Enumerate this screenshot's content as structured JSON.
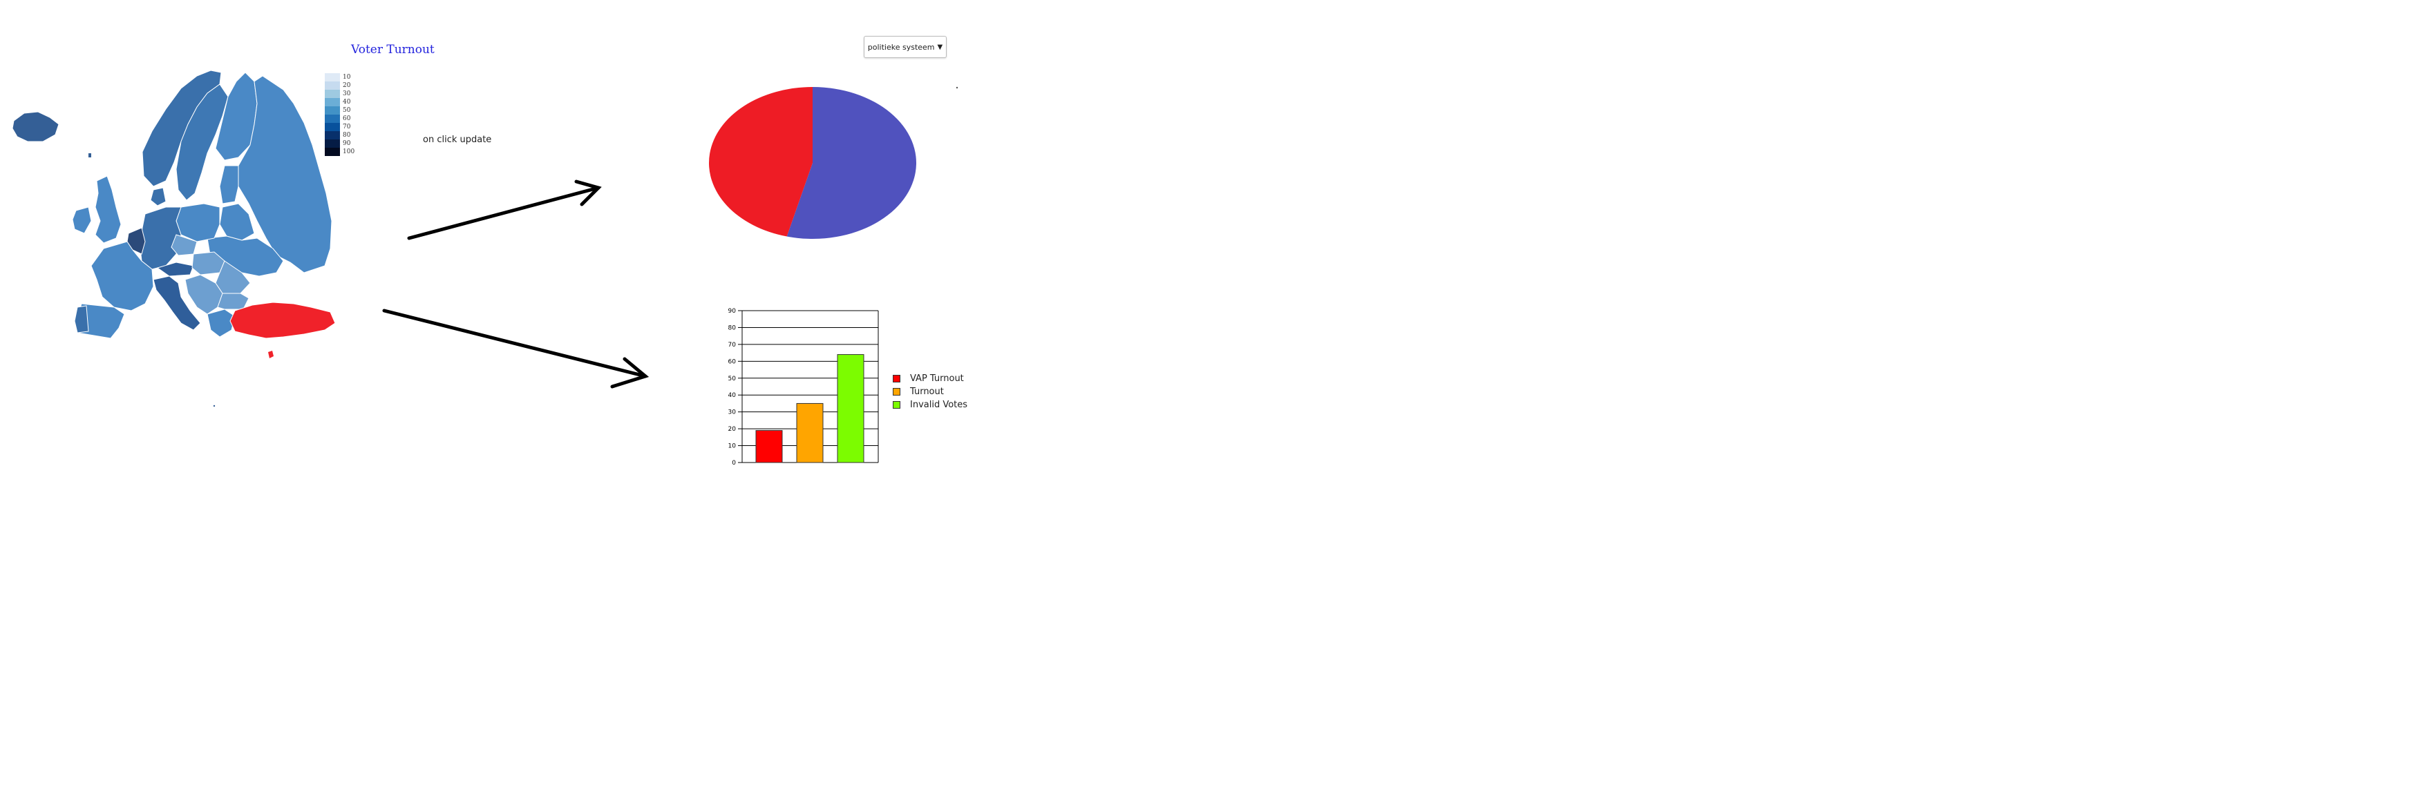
{
  "map": {
    "title": "Voter Turnout",
    "legend_labels": [
      "10",
      "20",
      "30",
      "40",
      "50",
      "60",
      "70",
      "80",
      "90",
      "100"
    ],
    "legend_colors": [
      "#dfeaf6",
      "#c6dbef",
      "#9ecae1",
      "#6baed6",
      "#4292c6",
      "#2171b5",
      "#08519c",
      "#08306b",
      "#051c45",
      "#020a20"
    ],
    "base_color": "#4a89c6",
    "dark_color": "#2f5e9a",
    "highlight_color": "#f0222a"
  },
  "annotation": "on click update",
  "dropdown": {
    "selected": "politieke systeem",
    "arrow": "▼"
  },
  "chart_data": [
    {
      "type": "pie",
      "slices": [
        {
          "value": 54,
          "color": "#5052be"
        },
        {
          "value": 46,
          "color": "#ee1c25"
        }
      ],
      "start": "top",
      "direction": "clockwise"
    },
    {
      "type": "bar",
      "categories": [
        "VAP Turnout",
        "Turnout",
        "Invalid Votes"
      ],
      "values": [
        19,
        35,
        64
      ],
      "colors": [
        "#ff0000",
        "#ffa500",
        "#7cfc00"
      ],
      "ylim": [
        0,
        90
      ],
      "yticks": [
        0,
        10,
        20,
        30,
        40,
        50,
        60,
        70,
        80,
        90
      ],
      "grid": true,
      "legend": {
        "position": "right",
        "labels": [
          "VAP Turnout",
          "Turnout",
          "Invalid Votes"
        ]
      }
    }
  ]
}
